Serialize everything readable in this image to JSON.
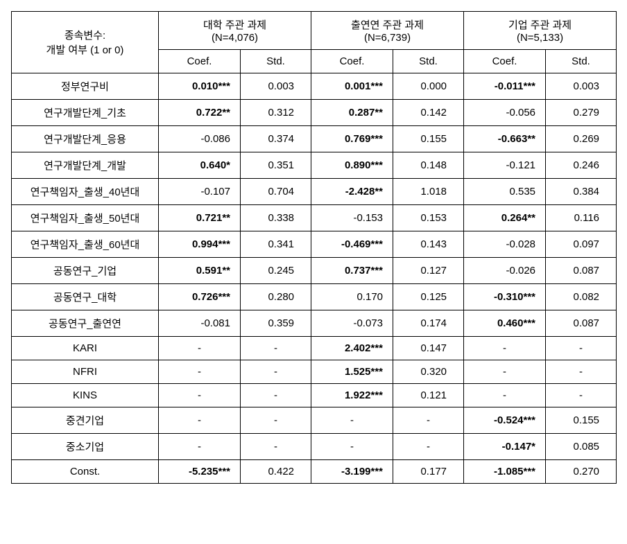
{
  "header": {
    "dep_var_line1": "종속변수:",
    "dep_var_line2": "개발 여부 (1 or 0)",
    "group1_title": "대학 주관 과제",
    "group1_n": "(N=4,076)",
    "group2_title": "출연연 주관 과제",
    "group2_n": "(N=6,739)",
    "group3_title": "기업 주관 과제",
    "group3_n": "(N=5,133)",
    "coef_label": "Coef.",
    "std_label": "Std."
  },
  "rows": [
    {
      "label": "정부연구비",
      "g1_coef": "0.010***",
      "g1_coef_bold": true,
      "g1_std": "0.003",
      "g2_coef": "0.001***",
      "g2_coef_bold": true,
      "g2_std": "0.000",
      "g3_coef": "-0.011***",
      "g3_coef_bold": true,
      "g3_std": "0.003"
    },
    {
      "label": "연구개발단계_기초",
      "g1_coef": "0.722**",
      "g1_coef_bold": true,
      "g1_std": "0.312",
      "g2_coef": "0.287**",
      "g2_coef_bold": true,
      "g2_std": "0.142",
      "g3_coef": "-0.056",
      "g3_coef_bold": false,
      "g3_std": "0.279"
    },
    {
      "label": "연구개발단계_응용",
      "g1_coef": "-0.086",
      "g1_coef_bold": false,
      "g1_std": "0.374",
      "g2_coef": "0.769***",
      "g2_coef_bold": true,
      "g2_std": "0.155",
      "g3_coef": "-0.663**",
      "g3_coef_bold": true,
      "g3_std": "0.269"
    },
    {
      "label": "연구개발단계_개발",
      "g1_coef": "0.640*",
      "g1_coef_bold": true,
      "g1_std": "0.351",
      "g2_coef": "0.890***",
      "g2_coef_bold": true,
      "g2_std": "0.148",
      "g3_coef": "-0.121",
      "g3_coef_bold": false,
      "g3_std": "0.246"
    },
    {
      "label": "연구책임자_출생_40년대",
      "g1_coef": "-0.107",
      "g1_coef_bold": false,
      "g1_std": "0.704",
      "g2_coef": "-2.428**",
      "g2_coef_bold": true,
      "g2_std": "1.018",
      "g3_coef": "0.535",
      "g3_coef_bold": false,
      "g3_std": "0.384"
    },
    {
      "label": "연구책임자_출생_50년대",
      "g1_coef": "0.721**",
      "g1_coef_bold": true,
      "g1_std": "0.338",
      "g2_coef": "-0.153",
      "g2_coef_bold": false,
      "g2_std": "0.153",
      "g3_coef": "0.264**",
      "g3_coef_bold": true,
      "g3_std": "0.116"
    },
    {
      "label": "연구책임자_출생_60년대",
      "g1_coef": "0.994***",
      "g1_coef_bold": true,
      "g1_std": "0.341",
      "g2_coef": "-0.469***",
      "g2_coef_bold": true,
      "g2_std": "0.143",
      "g3_coef": "-0.028",
      "g3_coef_bold": false,
      "g3_std": "0.097"
    },
    {
      "label": "공동연구_기업",
      "g1_coef": "0.591**",
      "g1_coef_bold": true,
      "g1_std": "0.245",
      "g2_coef": "0.737***",
      "g2_coef_bold": true,
      "g2_std": "0.127",
      "g3_coef": "-0.026",
      "g3_coef_bold": false,
      "g3_std": "0.087"
    },
    {
      "label": "공동연구_대학",
      "g1_coef": "0.726***",
      "g1_coef_bold": true,
      "g1_std": "0.280",
      "g2_coef": "0.170",
      "g2_coef_bold": false,
      "g2_std": "0.125",
      "g3_coef": "-0.310***",
      "g3_coef_bold": true,
      "g3_std": "0.082"
    },
    {
      "label": "공동연구_출연연",
      "g1_coef": "-0.081",
      "g1_coef_bold": false,
      "g1_std": "0.359",
      "g2_coef": "-0.073",
      "g2_coef_bold": false,
      "g2_std": "0.174",
      "g3_coef": "0.460***",
      "g3_coef_bold": true,
      "g3_std": "0.087"
    },
    {
      "label": "KARI",
      "g1_coef": "-",
      "g1_coef_bold": false,
      "g1_std": "-",
      "g2_coef": "2.402***",
      "g2_coef_bold": true,
      "g2_std": "0.147",
      "g3_coef": "-",
      "g3_coef_bold": false,
      "g3_std": "-"
    },
    {
      "label": "NFRI",
      "g1_coef": "-",
      "g1_coef_bold": false,
      "g1_std": "-",
      "g2_coef": "1.525***",
      "g2_coef_bold": true,
      "g2_std": "0.320",
      "g3_coef": "-",
      "g3_coef_bold": false,
      "g3_std": "-"
    },
    {
      "label": "KINS",
      "g1_coef": "-",
      "g1_coef_bold": false,
      "g1_std": "-",
      "g2_coef": "1.922***",
      "g2_coef_bold": true,
      "g2_std": "0.121",
      "g3_coef": "-",
      "g3_coef_bold": false,
      "g3_std": "-"
    },
    {
      "label": "중견기업",
      "g1_coef": "-",
      "g1_coef_bold": false,
      "g1_std": "-",
      "g2_coef": "-",
      "g2_coef_bold": false,
      "g2_std": "-",
      "g3_coef": "-0.524***",
      "g3_coef_bold": true,
      "g3_std": "0.155"
    },
    {
      "label": "중소기업",
      "g1_coef": "-",
      "g1_coef_bold": false,
      "g1_std": "-",
      "g2_coef": "-",
      "g2_coef_bold": false,
      "g2_std": "-",
      "g3_coef": "-0.147*",
      "g3_coef_bold": true,
      "g3_std": "0.085"
    },
    {
      "label": "Const.",
      "g1_coef": "-5.235***",
      "g1_coef_bold": true,
      "g1_std": "0.422",
      "g2_coef": "-3.199***",
      "g2_coef_bold": true,
      "g2_std": "0.177",
      "g3_coef": "-1.085***",
      "g3_coef_bold": true,
      "g3_std": "0.270"
    }
  ]
}
